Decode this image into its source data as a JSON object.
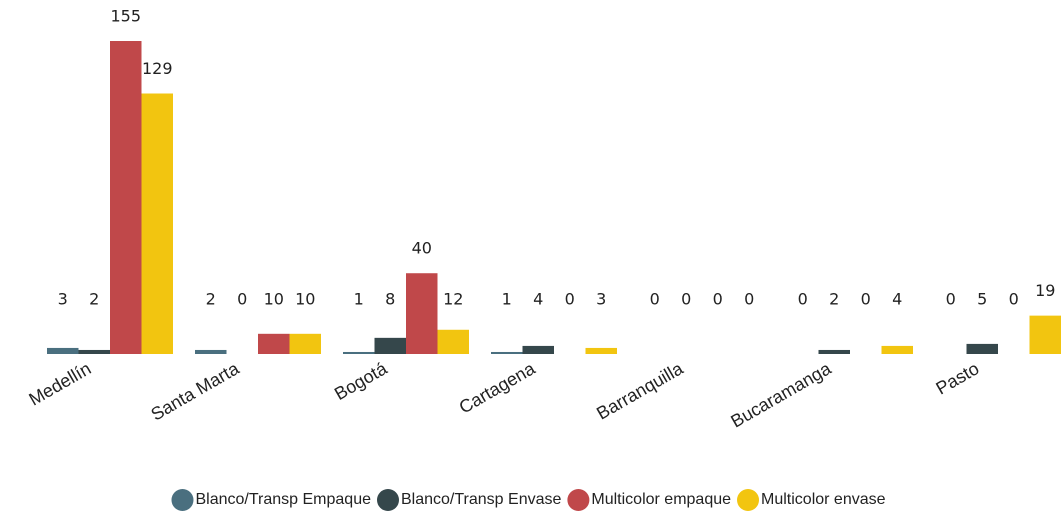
{
  "chart_data": {
    "type": "bar",
    "categories": [
      "Medellín",
      "Santa Marta",
      "Bogotá",
      "Cartagena",
      "Barranquilla",
      "Bucaramanga",
      "Pasto"
    ],
    "series": [
      {
        "name": "Blanco/Transp Empaque",
        "color": "#4a6f7f",
        "values": [
          3,
          2,
          1,
          1,
          0,
          0,
          0
        ]
      },
      {
        "name": "Blanco/Transp Envase",
        "color": "#35474b",
        "values": [
          2,
          0,
          8,
          4,
          0,
          2,
          5
        ]
      },
      {
        "name": "Multicolor empaque",
        "color": "#c0484a",
        "values": [
          155,
          10,
          40,
          0,
          0,
          0,
          0
        ]
      },
      {
        "name": "Multicolor envase",
        "color": "#f2c510",
        "values": [
          129,
          10,
          12,
          3,
          0,
          4,
          19
        ]
      }
    ],
    "legend": "bottom"
  }
}
